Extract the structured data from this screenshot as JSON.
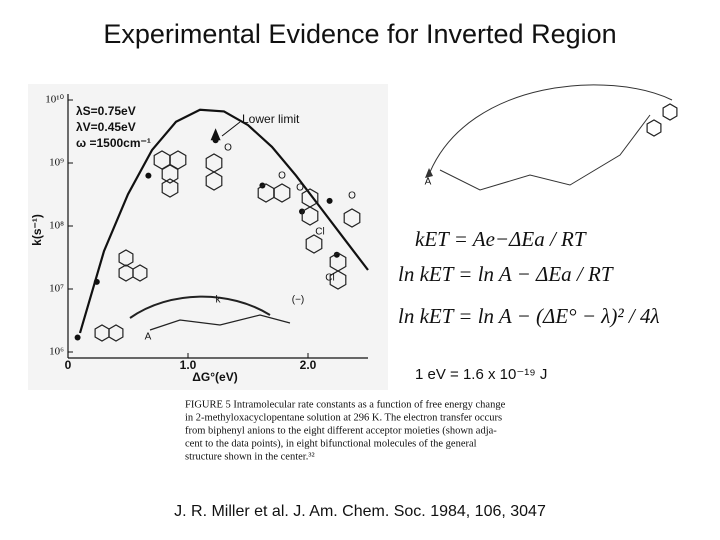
{
  "header": {
    "title": "Experimental Evidence for Inverted Region"
  },
  "chart_data": {
    "type": "scatter",
    "xlabel": "ΔG°(eV)",
    "ylabel": "k(s⁻¹)",
    "xlim": [
      0,
      2.5
    ],
    "ylim": [
      1000000,
      10000000000
    ],
    "log_y": true,
    "xticks": [
      0,
      {
        "value": 1,
        "label": "1.0"
      },
      {
        "value": 2,
        "label": "2.0"
      }
    ],
    "yticks": [
      {
        "value": 1000000,
        "label": "10⁶"
      },
      {
        "value": 10000000,
        "label": "10⁷"
      },
      {
        "value": 100000000,
        "label": "10⁸"
      },
      {
        "value": 1000000000,
        "label": "10⁹"
      },
      {
        "value": 10000000000,
        "label": "10¹⁰"
      }
    ],
    "series": [
      {
        "mode": "points",
        "color": "#111111",
        "x": [
          0.08,
          0.24,
          0.67,
          1.23,
          1.62,
          1.95,
          2.18,
          2.24
        ],
        "values": [
          1700000,
          13000000,
          630000000,
          2300000000,
          440000000,
          170000000,
          250000000,
          35000000
        ]
      },
      {
        "mode": "line",
        "color": "#111111",
        "x": [
          0.1,
          0.3,
          0.5,
          0.7,
          0.9,
          1.1,
          1.3,
          1.5,
          1.7,
          1.9,
          2.1,
          2.3,
          2.5
        ],
        "values": [
          2000000,
          40000000,
          320000000,
          1600000000,
          4500000000,
          7000000000,
          6600000000,
          4000000000,
          1800000000,
          630000000,
          200000000,
          63000000,
          20000000
        ]
      }
    ],
    "parameters": [
      "λS=0.75eV",
      "λV=0.45eV",
      "ω =1500cm⁻¹"
    ],
    "annotation": "Lower limit",
    "structure_labels": [
      "A",
      "k",
      "(−)",
      "O",
      "O",
      "O",
      "O",
      "Cl",
      "Cl",
      "A"
    ]
  },
  "equations": [
    "kET = Ae−ΔEa / RT",
    "ln kET = ln A − ΔEa / RT",
    "ln kET = ln A − (ΔE° − λ)² / 4λ"
  ],
  "note": "1 eV = 1.6 x 10⁻¹⁹ J",
  "caption": [
    "FIGURE 5 Intramolecular rate constants as a function of free energy change",
    "in 2-methyloxacyclopentane solution at 296 K. The electron transfer occurs",
    "from biphenyl anions to the eight different acceptor moieties (shown adja-",
    "cent to the data points), in eight bifunctional molecules of the general",
    "structure shown in the center.³²"
  ],
  "citation": "J. R. Miller et al. J. Am. Chem. Soc. 1984, 106, 3047"
}
